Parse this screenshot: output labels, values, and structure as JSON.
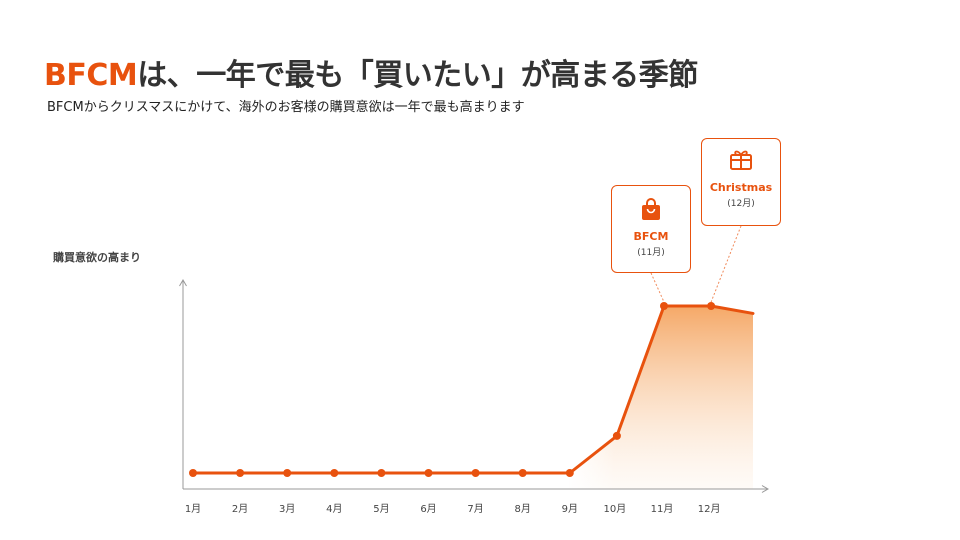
{
  "header": {
    "title_accent": "BFCM",
    "title_rest": "は、一年で最も「買いたい」が高まる季節",
    "subtitle": "BFCMからクリスマスにかけて、海外のお客様の購買意欲は一年で最も高まります"
  },
  "colors": {
    "accent": "#e8520e",
    "axis": "#999999",
    "area_top": "#f5a867"
  },
  "callouts": [
    {
      "icon": "shopping-bag-icon",
      "name": "BFCM",
      "month": "(11月)"
    },
    {
      "icon": "gift-icon",
      "name": "Christmas",
      "month": "(12月)"
    }
  ],
  "chart_data": {
    "type": "area",
    "ylabel": "購買意欲の高まり",
    "xlabel": "",
    "categories": [
      "1月",
      "2月",
      "3月",
      "4月",
      "5月",
      "6月",
      "7月",
      "8月",
      "9月",
      "10月",
      "11月",
      "12月"
    ],
    "values": [
      0,
      0,
      0,
      0,
      0,
      0,
      0,
      0,
      0,
      0.2,
      0.9,
      0.9
    ],
    "end_value": 0.86,
    "ylim": [
      0,
      1
    ],
    "grid": false,
    "y_ticks": false
  }
}
